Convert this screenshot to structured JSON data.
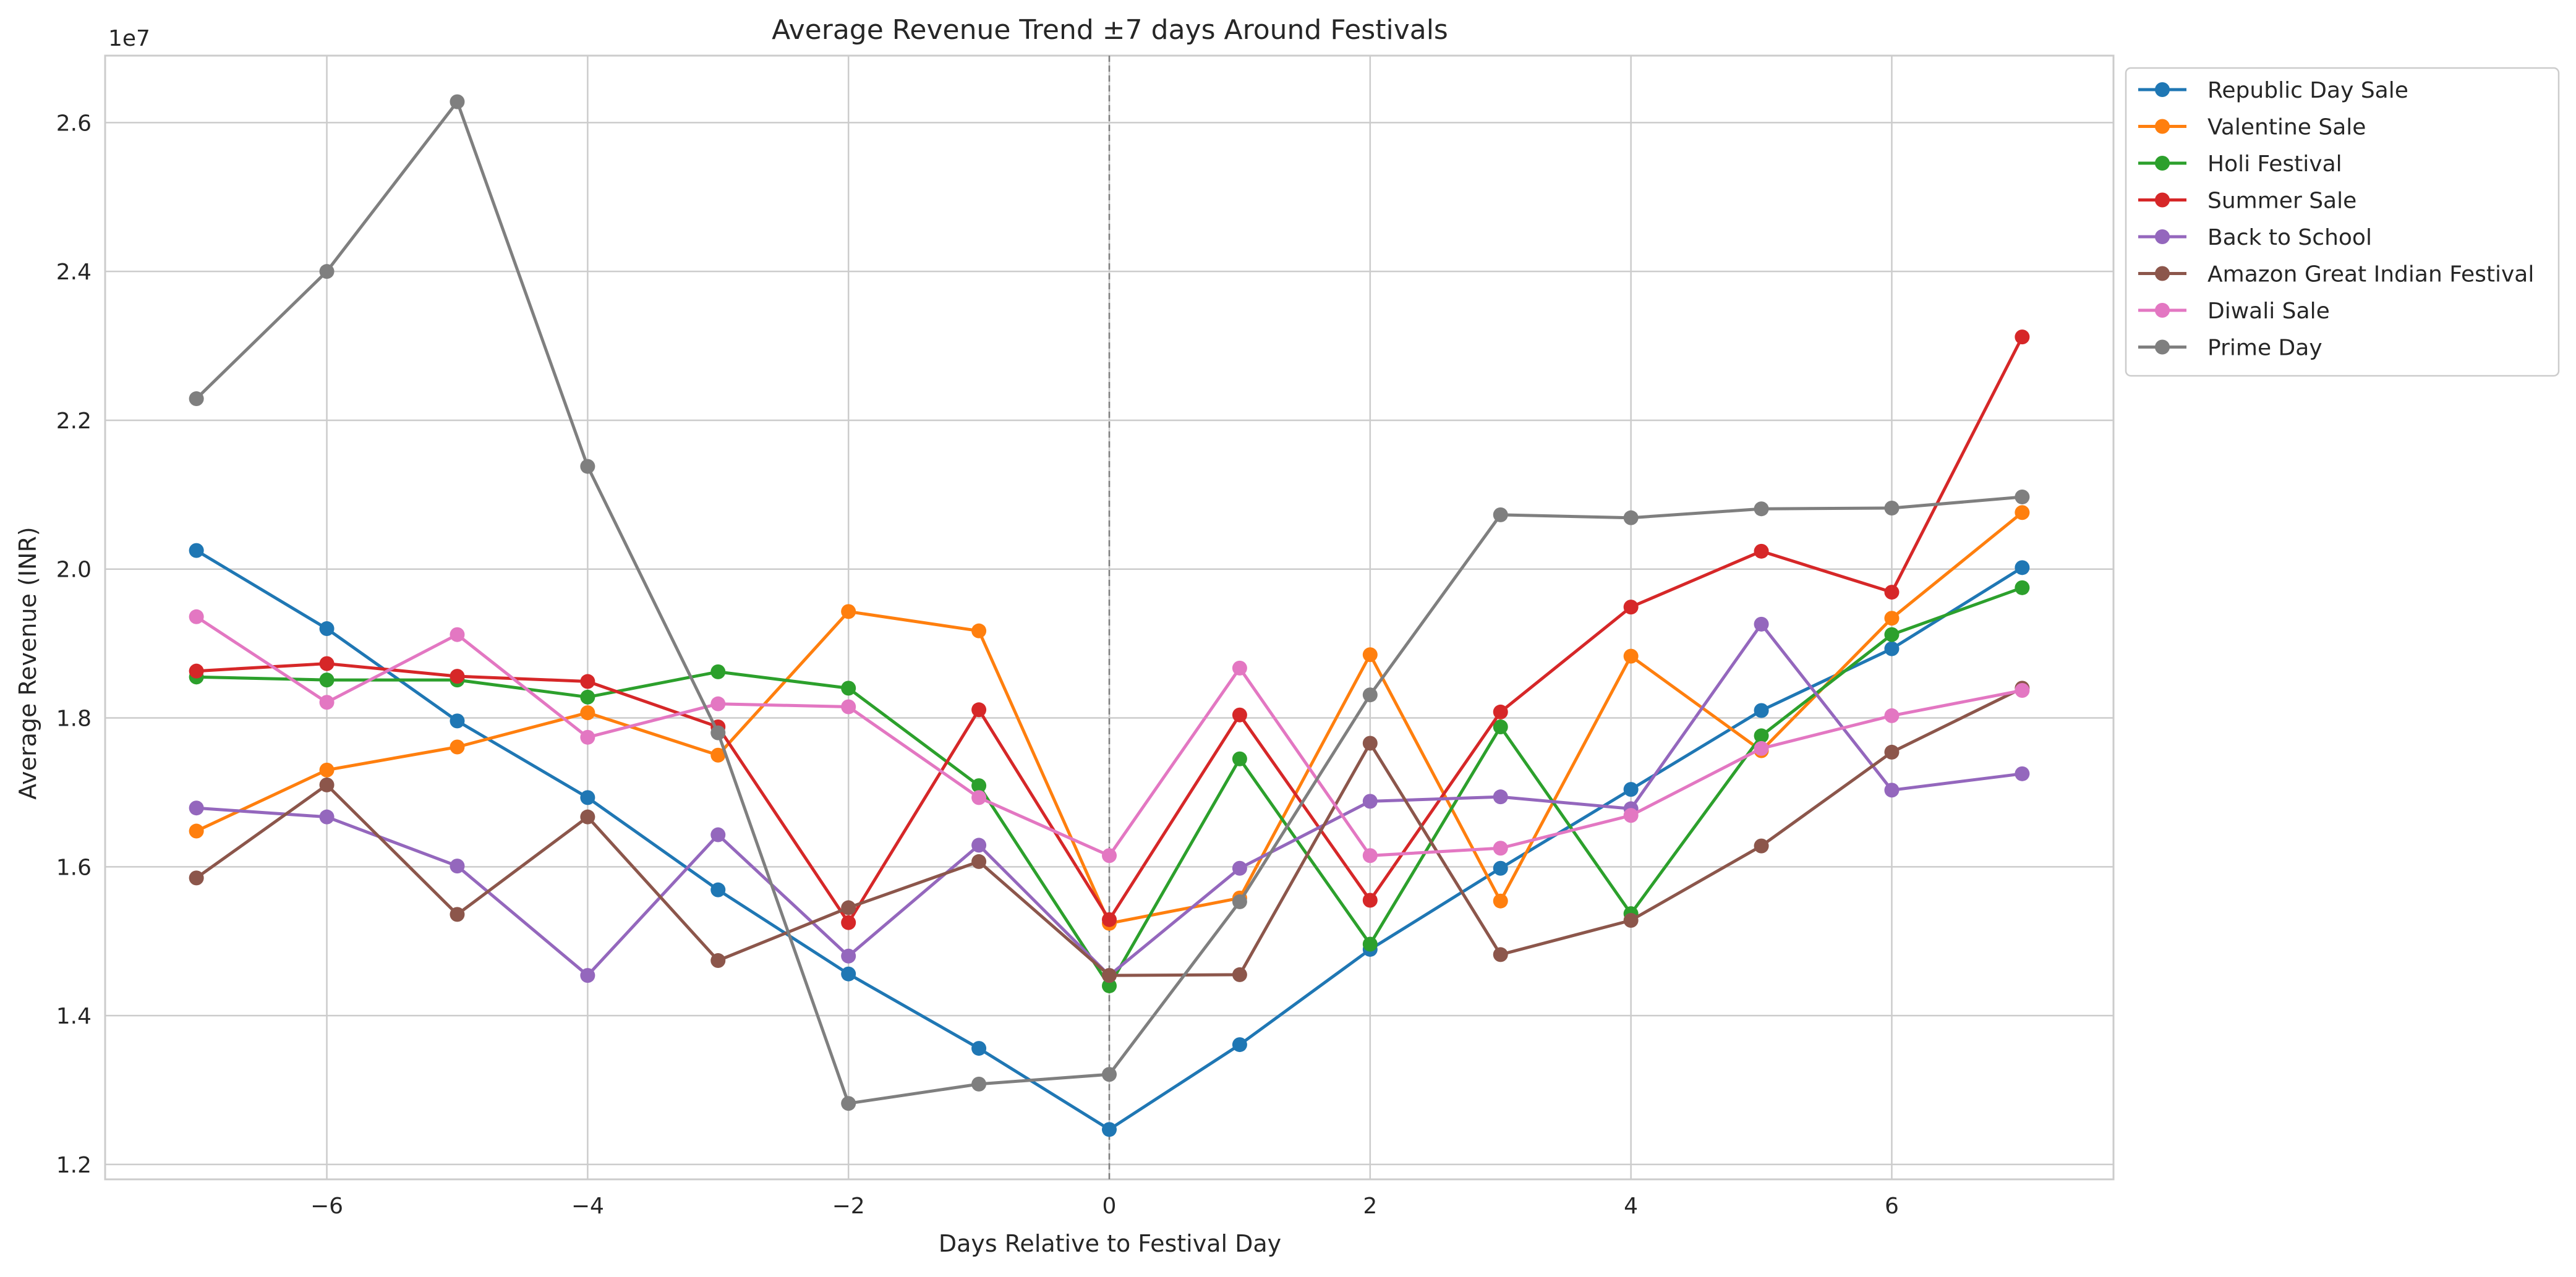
{
  "chart_data": {
    "type": "line",
    "title": "Average Revenue Trend ±7 days Around Festivals",
    "xlabel": "Days Relative to Festival Day",
    "ylabel": "Average Revenue (INR)",
    "y_offset_label": "1e7",
    "xlim": [
      -7.7,
      7.7
    ],
    "ylim": [
      11800000,
      26900000
    ],
    "x_ticks": [
      -6,
      -4,
      -2,
      0,
      2,
      4,
      6
    ],
    "x_tick_labels": [
      "−6",
      "−4",
      "−2",
      "0",
      "2",
      "4",
      "6"
    ],
    "y_ticks": [
      12000000,
      14000000,
      16000000,
      18000000,
      20000000,
      22000000,
      24000000,
      26000000
    ],
    "y_tick_labels": [
      "1.2",
      "1.4",
      "1.6",
      "1.8",
      "2.0",
      "2.2",
      "2.4",
      "2.6"
    ],
    "grid": true,
    "reference_line_x": 0,
    "legend_position": "outside-upper-right",
    "x": [
      -7,
      -6,
      -5,
      -4,
      -3,
      -2,
      -1,
      0,
      1,
      2,
      3,
      4,
      5,
      6,
      7
    ],
    "series": [
      {
        "name": "Republic Day Sale",
        "color": "#1f77b4",
        "values": [
          20250000,
          19200000,
          17960000,
          16930000,
          15690000,
          14560000,
          13560000,
          12470000,
          13610000,
          14890000,
          15980000,
          17040000,
          18100000,
          18930000,
          20020000
        ]
      },
      {
        "name": "Valentine Sale",
        "color": "#ff7f0e",
        "values": [
          16480000,
          17300000,
          17610000,
          18070000,
          17500000,
          19430000,
          19170000,
          15240000,
          15580000,
          18850000,
          15540000,
          18830000,
          17560000,
          19340000,
          20760000
        ]
      },
      {
        "name": "Holi Festival",
        "color": "#2ca02c",
        "values": [
          18550000,
          18510000,
          18510000,
          18280000,
          18620000,
          18400000,
          17090000,
          14400000,
          17450000,
          14960000,
          17880000,
          15370000,
          17760000,
          19120000,
          19750000
        ]
      },
      {
        "name": "Summer Sale",
        "color": "#d62728",
        "values": [
          18630000,
          18730000,
          18560000,
          18490000,
          17880000,
          15250000,
          18110000,
          15290000,
          18040000,
          15550000,
          18080000,
          19490000,
          20240000,
          19690000,
          23120000
        ]
      },
      {
        "name": "Back to School",
        "color": "#9467bd",
        "values": [
          16790000,
          16670000,
          16010000,
          14540000,
          16430000,
          14800000,
          16290000,
          14540000,
          15980000,
          16880000,
          16940000,
          16780000,
          19260000,
          17030000,
          17250000
        ]
      },
      {
        "name": "Amazon Great Indian Festival",
        "color": "#8c564b",
        "values": [
          15850000,
          17100000,
          15360000,
          16670000,
          14740000,
          15450000,
          16070000,
          14540000,
          14550000,
          17660000,
          14820000,
          15280000,
          16280000,
          17540000,
          18400000
        ]
      },
      {
        "name": "Diwali Sale",
        "color": "#e377c2",
        "values": [
          19360000,
          18210000,
          19120000,
          17740000,
          18190000,
          18150000,
          16930000,
          16150000,
          18670000,
          16150000,
          16250000,
          16690000,
          17590000,
          18030000,
          18370000
        ]
      },
      {
        "name": "Prime Day",
        "color": "#7f7f7f",
        "values": [
          22290000,
          24000000,
          26280000,
          21380000,
          17800000,
          12820000,
          13080000,
          13210000,
          15530000,
          18310000,
          20730000,
          20690000,
          20810000,
          20820000,
          20970000
        ]
      }
    ]
  }
}
